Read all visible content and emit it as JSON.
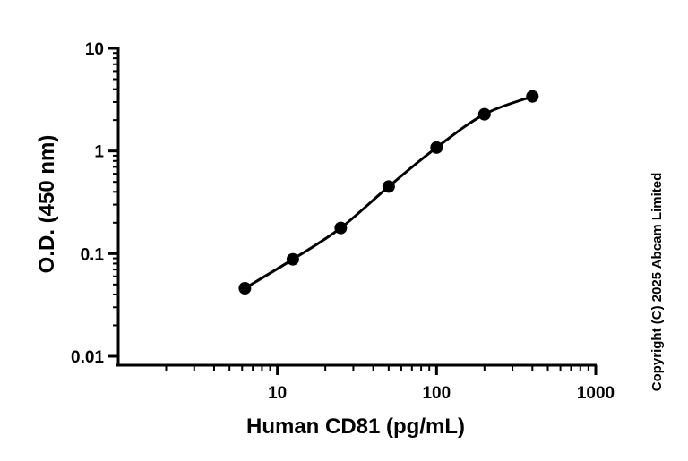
{
  "chart_data": {
    "type": "scatter",
    "xlabel": "Human CD81 (pg/mL)",
    "ylabel": "O.D. (450 nm)",
    "x_scale": "log",
    "y_scale": "log",
    "xlim": [
      1,
      1000
    ],
    "ylim": [
      0.008,
      10
    ],
    "x_ticks": [
      {
        "value": 10,
        "label": "10"
      },
      {
        "value": 100,
        "label": "100"
      },
      {
        "value": 1000,
        "label": "1000"
      }
    ],
    "y_ticks": [
      {
        "value": 0.01,
        "label": "0.01"
      },
      {
        "value": 0.1,
        "label": "0.1"
      },
      {
        "value": 1,
        "label": "1"
      },
      {
        "value": 10,
        "label": "10"
      }
    ],
    "grid": false,
    "series": [
      {
        "x": [
          6.25,
          12.5,
          25,
          50,
          100,
          200,
          400
        ],
        "y": [
          0.046,
          0.088,
          0.178,
          0.45,
          1.08,
          2.28,
          3.4
        ],
        "color": "#000000",
        "fit": "4PL curve"
      }
    ]
  },
  "copyright": "Copyright (C) 2025 Abcam Limited"
}
